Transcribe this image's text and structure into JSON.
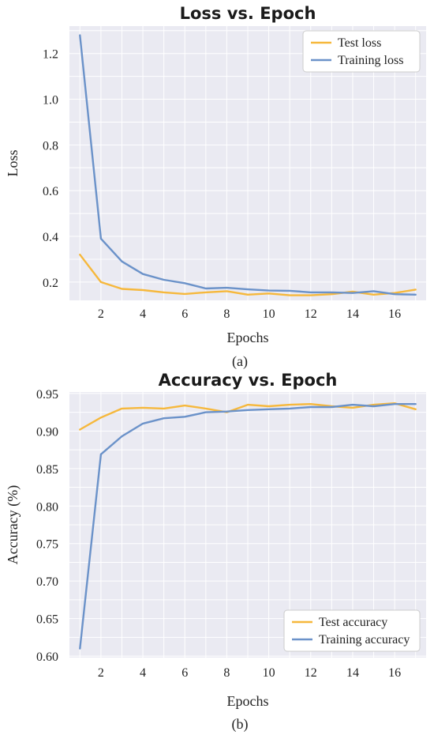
{
  "colors": {
    "test": "#f6b83c",
    "train": "#6b92c9"
  },
  "chart_data": [
    {
      "type": "line",
      "title": "Loss vs. Epoch",
      "xlabel": "Epochs",
      "ylabel": "Loss",
      "caption": "(a)",
      "xlim": [
        0.5,
        17.5
      ],
      "ylim": [
        0.12,
        1.32
      ],
      "xticks": [
        2,
        4,
        6,
        8,
        10,
        12,
        14,
        16
      ],
      "yticks": [
        0.2,
        0.4,
        0.6,
        0.8,
        1.0,
        1.2
      ],
      "ytick_labels": [
        "0.2",
        "0.4",
        "0.6",
        "0.8",
        "1.0",
        "1.2"
      ],
      "grid": true,
      "legend_position": "top-right",
      "x": [
        1,
        2,
        3,
        4,
        5,
        6,
        7,
        8,
        9,
        10,
        11,
        12,
        13,
        14,
        15,
        16,
        17
      ],
      "series": [
        {
          "name": "Test loss",
          "color_key": "test",
          "values": [
            0.32,
            0.2,
            0.17,
            0.165,
            0.155,
            0.148,
            0.155,
            0.16,
            0.145,
            0.15,
            0.142,
            0.142,
            0.147,
            0.158,
            0.145,
            0.152,
            0.167
          ]
        },
        {
          "name": "Training loss",
          "color_key": "train",
          "values": [
            1.28,
            0.39,
            0.29,
            0.235,
            0.21,
            0.195,
            0.172,
            0.175,
            0.168,
            0.163,
            0.162,
            0.155,
            0.155,
            0.152,
            0.16,
            0.147,
            0.145
          ]
        }
      ]
    },
    {
      "type": "line",
      "title": "Accuracy vs. Epoch",
      "xlabel": "Epochs",
      "ylabel": "Accuracy (%)",
      "caption": "(b)",
      "xlim": [
        0.5,
        17.5
      ],
      "ylim": [
        0.598,
        0.952
      ],
      "xticks": [
        2,
        4,
        6,
        8,
        10,
        12,
        14,
        16
      ],
      "yticks": [
        0.6,
        0.65,
        0.7,
        0.75,
        0.8,
        0.85,
        0.9,
        0.95
      ],
      "ytick_labels": [
        "0.60",
        "0.65",
        "0.70",
        "0.75",
        "0.80",
        "0.85",
        "0.90",
        "0.95"
      ],
      "grid": true,
      "legend_position": "bottom-right",
      "x": [
        1,
        2,
        3,
        4,
        5,
        6,
        7,
        8,
        9,
        10,
        11,
        12,
        13,
        14,
        15,
        16,
        17
      ],
      "series": [
        {
          "name": "Test accuracy",
          "color_key": "test",
          "values": [
            0.902,
            0.918,
            0.93,
            0.931,
            0.93,
            0.934,
            0.93,
            0.925,
            0.935,
            0.933,
            0.935,
            0.936,
            0.933,
            0.931,
            0.935,
            0.937,
            0.929
          ]
        },
        {
          "name": "Training accuracy",
          "color_key": "train",
          "values": [
            0.61,
            0.869,
            0.893,
            0.91,
            0.917,
            0.919,
            0.925,
            0.926,
            0.928,
            0.929,
            0.93,
            0.932,
            0.932,
            0.935,
            0.933,
            0.936,
            0.936
          ]
        }
      ]
    }
  ]
}
